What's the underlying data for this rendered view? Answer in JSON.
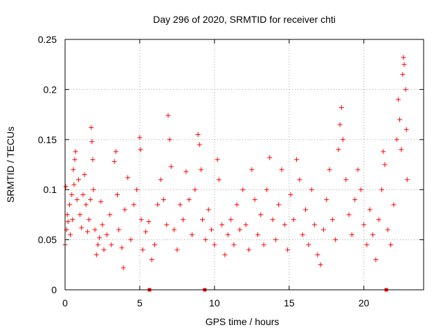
{
  "chart_data": {
    "type": "scatter",
    "title": "Day 296 of 2020, SRMTID for receiver chti",
    "xlabel": "GPS time / hours",
    "ylabel": "SRMTID / TECUs",
    "xlim": [
      0,
      24
    ],
    "ylim": [
      0,
      0.25
    ],
    "xticks": [
      0,
      5,
      10,
      15,
      20
    ],
    "xtick_labels": [
      "0",
      "5",
      "10",
      "15",
      "20"
    ],
    "yticks": [
      0,
      0.05,
      0.1,
      0.15,
      0.2,
      0.25
    ],
    "ytick_labels": [
      "0",
      "0.05",
      "0.1",
      "0.15",
      "0.2",
      "0.25"
    ],
    "grid": true,
    "marker": "+",
    "color": "#ff0000",
    "x_axis_markers": [
      5.65,
      9.35,
      21.5
    ],
    "series": [
      {
        "name": "SRMTID",
        "points": [
          [
            0.0,
            0.045
          ],
          [
            0.05,
            0.103
          ],
          [
            0.1,
            0.06
          ],
          [
            0.15,
            0.075
          ],
          [
            0.2,
            0.068
          ],
          [
            0.3,
            0.085
          ],
          [
            0.35,
            0.055
          ],
          [
            0.45,
            0.095
          ],
          [
            0.5,
            0.07
          ],
          [
            0.55,
            0.12
          ],
          [
            0.6,
            0.105
          ],
          [
            0.65,
            0.13
          ],
          [
            0.7,
            0.138
          ],
          [
            0.8,
            0.09
          ],
          [
            0.9,
            0.11
          ],
          [
            1.0,
            0.075
          ],
          [
            1.1,
            0.062
          ],
          [
            1.2,
            0.095
          ],
          [
            1.3,
            0.115
          ],
          [
            1.4,
            0.085
          ],
          [
            1.5,
            0.058
          ],
          [
            1.6,
            0.07
          ],
          [
            1.7,
            0.09
          ],
          [
            1.75,
            0.162
          ],
          [
            1.8,
            0.148
          ],
          [
            1.85,
            0.13
          ],
          [
            1.9,
            0.1
          ],
          [
            2.0,
            0.06
          ],
          [
            2.1,
            0.035
          ],
          [
            2.2,
            0.045
          ],
          [
            2.3,
            0.052
          ],
          [
            2.4,
            0.088
          ],
          [
            2.5,
            0.065
          ],
          [
            2.6,
            0.04
          ],
          [
            2.8,
            0.055
          ],
          [
            3.0,
            0.075
          ],
          [
            3.1,
            0.045
          ],
          [
            3.3,
            0.128
          ],
          [
            3.4,
            0.138
          ],
          [
            3.5,
            0.095
          ],
          [
            3.6,
            0.06
          ],
          [
            3.8,
            0.042
          ],
          [
            3.9,
            0.022
          ],
          [
            4.0,
            0.08
          ],
          [
            4.2,
            0.112
          ],
          [
            4.4,
            0.05
          ],
          [
            4.6,
            0.085
          ],
          [
            4.8,
            0.1
          ],
          [
            5.0,
            0.152
          ],
          [
            5.05,
            0.14
          ],
          [
            5.1,
            0.07
          ],
          [
            5.2,
            0.04
          ],
          [
            5.4,
            0.058
          ],
          [
            5.6,
            0.068
          ],
          [
            5.8,
            0.03
          ],
          [
            6.0,
            0.045
          ],
          [
            6.2,
            0.085
          ],
          [
            6.4,
            0.11
          ],
          [
            6.6,
            0.09
          ],
          [
            6.8,
            0.065
          ],
          [
            6.9,
            0.174
          ],
          [
            7.0,
            0.15
          ],
          [
            7.1,
            0.123
          ],
          [
            7.3,
            0.06
          ],
          [
            7.5,
            0.04
          ],
          [
            7.7,
            0.085
          ],
          [
            7.9,
            0.07
          ],
          [
            8.1,
            0.118
          ],
          [
            8.3,
            0.09
          ],
          [
            8.5,
            0.055
          ],
          [
            8.7,
            0.1
          ],
          [
            8.9,
            0.155
          ],
          [
            9.0,
            0.145
          ],
          [
            9.1,
            0.12
          ],
          [
            9.2,
            0.07
          ],
          [
            9.4,
            0.05
          ],
          [
            9.6,
            0.08
          ],
          [
            9.8,
            0.06
          ],
          [
            10.0,
            0.045
          ],
          [
            10.2,
            0.13
          ],
          [
            10.3,
            0.11
          ],
          [
            10.5,
            0.065
          ],
          [
            10.7,
            0.035
          ],
          [
            10.9,
            0.055
          ],
          [
            11.1,
            0.07
          ],
          [
            11.3,
            0.045
          ],
          [
            11.5,
            0.085
          ],
          [
            11.7,
            0.06
          ],
          [
            11.9,
            0.1
          ],
          [
            12.1,
            0.065
          ],
          [
            12.3,
            0.04
          ],
          [
            12.5,
            0.12
          ],
          [
            12.7,
            0.09
          ],
          [
            12.9,
            0.055
          ],
          [
            13.1,
            0.075
          ],
          [
            13.3,
            0.045
          ],
          [
            13.5,
            0.1
          ],
          [
            13.7,
            0.132
          ],
          [
            13.9,
            0.07
          ],
          [
            14.1,
            0.05
          ],
          [
            14.3,
            0.085
          ],
          [
            14.5,
            0.12
          ],
          [
            14.7,
            0.065
          ],
          [
            14.9,
            0.04
          ],
          [
            15.1,
            0.095
          ],
          [
            15.3,
            0.07
          ],
          [
            15.5,
            0.13
          ],
          [
            15.7,
            0.11
          ],
          [
            15.9,
            0.055
          ],
          [
            16.1,
            0.08
          ],
          [
            16.3,
            0.045
          ],
          [
            16.5,
            0.1
          ],
          [
            16.7,
            0.065
          ],
          [
            16.9,
            0.035
          ],
          [
            17.1,
            0.025
          ],
          [
            17.3,
            0.06
          ],
          [
            17.5,
            0.09
          ],
          [
            17.7,
            0.12
          ],
          [
            17.9,
            0.07
          ],
          [
            18.1,
            0.05
          ],
          [
            18.3,
            0.14
          ],
          [
            18.4,
            0.165
          ],
          [
            18.5,
            0.182
          ],
          [
            18.6,
            0.15
          ],
          [
            18.8,
            0.11
          ],
          [
            19.0,
            0.075
          ],
          [
            19.2,
            0.055
          ],
          [
            19.4,
            0.09
          ],
          [
            19.6,
            0.12
          ],
          [
            19.8,
            0.1
          ],
          [
            20.0,
            0.065
          ],
          [
            20.2,
            0.045
          ],
          [
            20.4,
            0.08
          ],
          [
            20.6,
            0.055
          ],
          [
            20.8,
            0.03
          ],
          [
            21.0,
            0.07
          ],
          [
            21.2,
            0.1
          ],
          [
            21.3,
            0.138
          ],
          [
            21.4,
            0.125
          ],
          [
            21.6,
            0.06
          ],
          [
            21.8,
            0.045
          ],
          [
            22.0,
            0.085
          ],
          [
            22.2,
            0.15
          ],
          [
            22.3,
            0.19
          ],
          [
            22.4,
            0.17
          ],
          [
            22.5,
            0.14
          ],
          [
            22.6,
            0.215
          ],
          [
            22.65,
            0.232
          ],
          [
            22.7,
            0.225
          ],
          [
            22.8,
            0.2
          ],
          [
            22.85,
            0.16
          ],
          [
            22.9,
            0.11
          ]
        ]
      }
    ]
  }
}
